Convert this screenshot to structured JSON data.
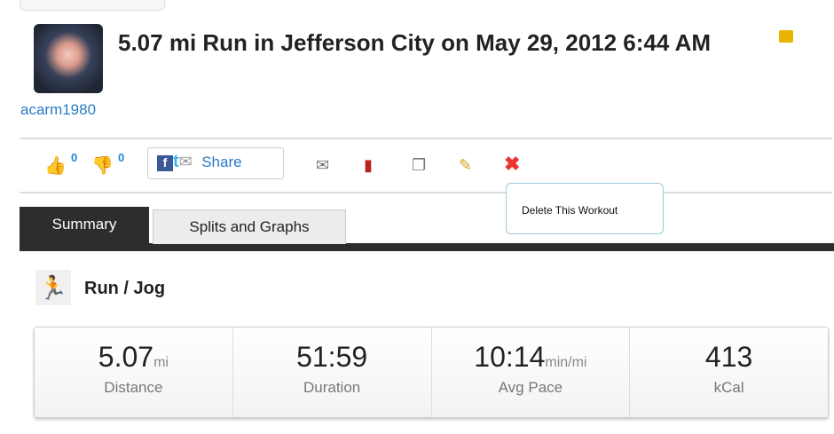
{
  "header": {
    "title": "5.07 mi Run in Jefferson City on May 29, 2012 6:44 AM",
    "username": "acarm1980"
  },
  "actions": {
    "likes": "0",
    "dislikes": "0",
    "share_label": "Share",
    "tooltip": "Delete This Workout"
  },
  "tabs": [
    {
      "label": "Summary"
    },
    {
      "label": "Splits and Graphs"
    }
  ],
  "activity": {
    "type": "Run / Jog"
  },
  "stats": [
    {
      "value": "5.07",
      "unit": "mi",
      "label": "Distance"
    },
    {
      "value": "51:59",
      "unit": "",
      "label": "Duration"
    },
    {
      "value": "10:14",
      "unit": "min/mi",
      "label": "Avg Pace"
    },
    {
      "value": "413",
      "unit": "",
      "label": "kCal"
    }
  ]
}
